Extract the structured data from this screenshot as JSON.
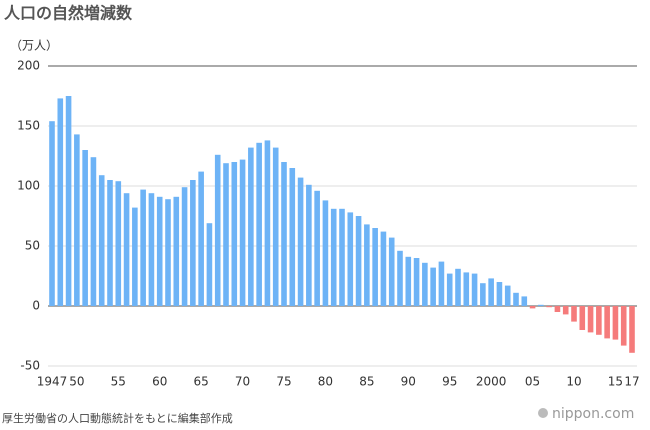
{
  "chart_data": {
    "type": "bar",
    "title": "人口の自然増減数",
    "y_label": "（万人）",
    "categories": [
      "1947",
      null,
      null,
      "50",
      null,
      null,
      null,
      null,
      "55",
      null,
      null,
      null,
      null,
      "60",
      null,
      null,
      null,
      null,
      "65",
      null,
      null,
      null,
      null,
      "70",
      null,
      null,
      null,
      null,
      "75",
      null,
      null,
      null,
      null,
      "80",
      null,
      null,
      null,
      null,
      "85",
      null,
      null,
      null,
      null,
      "90",
      null,
      null,
      null,
      null,
      "95",
      null,
      null,
      null,
      null,
      "2000",
      null,
      null,
      null,
      null,
      "05",
      null,
      null,
      null,
      null,
      "10",
      null,
      null,
      null,
      null,
      "15",
      null,
      "17"
    ],
    "values": [
      154,
      173,
      175,
      143,
      130,
      124,
      109,
      105,
      104,
      94,
      82,
      97,
      94,
      91,
      89,
      91,
      99,
      105,
      112,
      69,
      126,
      119,
      120,
      122,
      132,
      136,
      138,
      132,
      120,
      115,
      107,
      101,
      96,
      88,
      81,
      81,
      78,
      75,
      68,
      65,
      62,
      57,
      46,
      41,
      40,
      36,
      32,
      37,
      27,
      31,
      28,
      27,
      19,
      23,
      20,
      17,
      11,
      8,
      -2,
      1,
      -1,
      -5,
      -7,
      -13,
      -20,
      -22,
      -24,
      -27,
      -28,
      -33,
      -39
    ],
    "color": "#6db3f6",
    "negative_color": "#f57b7b",
    "ylim": [
      -50,
      200
    ],
    "yticks": [
      -50,
      0,
      50,
      100,
      150,
      200
    ],
    "grid": true,
    "source": "厚生労働省の人口動態統計をもとに編集部作成",
    "brand": "nippon.com"
  }
}
